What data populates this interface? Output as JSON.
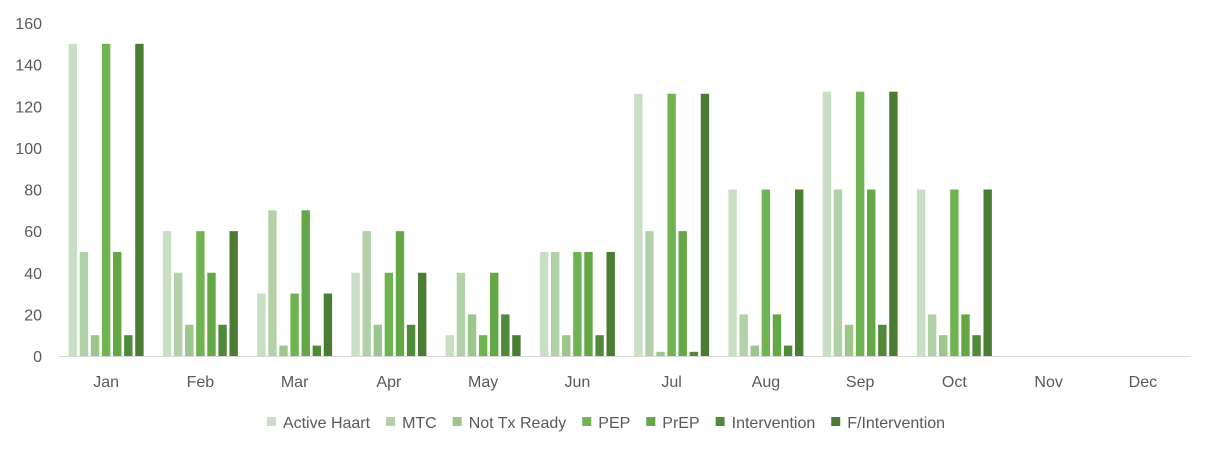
{
  "chart_data": {
    "type": "bar",
    "title": "",
    "xlabel": "",
    "ylabel": "",
    "ylim": [
      0,
      160
    ],
    "yticks": [
      0,
      20,
      40,
      60,
      80,
      100,
      120,
      140,
      160
    ],
    "grid": false,
    "legend_position": "bottom",
    "categories": [
      "Jan",
      "Feb",
      "Mar",
      "Apr",
      "May",
      "Jun",
      "Jul",
      "Aug",
      "Sep",
      "Oct",
      "Nov",
      "Dec"
    ],
    "series": [
      {
        "name": "Active Haart",
        "color": "#c9dfc3",
        "values": [
          150,
          60,
          30,
          40,
          10,
          50,
          126,
          80,
          127,
          80,
          0,
          0
        ]
      },
      {
        "name": "MTC",
        "color": "#b2d1a9",
        "values": [
          50,
          40,
          70,
          60,
          40,
          50,
          60,
          20,
          80,
          20,
          0,
          0
        ]
      },
      {
        "name": "Not Tx Ready",
        "color": "#9dc68d",
        "values": [
          10,
          15,
          5,
          15,
          20,
          10,
          2,
          5,
          15,
          10,
          0,
          0
        ]
      },
      {
        "name": "PEP",
        "color": "#6fb450",
        "values": [
          150,
          60,
          30,
          40,
          10,
          50,
          126,
          80,
          127,
          80,
          0,
          0
        ]
      },
      {
        "name": "PrEP",
        "color": "#64a845",
        "values": [
          50,
          40,
          70,
          60,
          40,
          50,
          60,
          20,
          80,
          20,
          0,
          0
        ]
      },
      {
        "name": "Intervention",
        "color": "#50893a",
        "values": [
          10,
          15,
          5,
          15,
          20,
          10,
          2,
          5,
          15,
          10,
          0,
          0
        ]
      },
      {
        "name": "F/Intervention",
        "color": "#4a7d33",
        "values": [
          150,
          60,
          30,
          40,
          10,
          50,
          126,
          80,
          127,
          80,
          0,
          0
        ]
      }
    ],
    "axis_color": "#d9d9d9",
    "text_color": "#595959"
  }
}
